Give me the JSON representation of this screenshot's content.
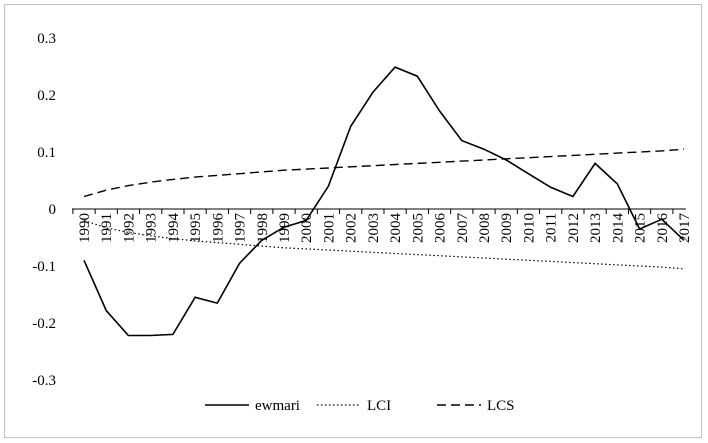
{
  "chart_data": {
    "type": "line",
    "title": "",
    "xlabel": "",
    "ylabel": "",
    "ylim": [
      -0.3,
      0.3
    ],
    "yticks": [
      "0.3",
      "0.2",
      "0.1",
      "0",
      "-0.1",
      "-0.2",
      "-0.3"
    ],
    "ytick_values": [
      0.3,
      0.2,
      0.1,
      0,
      -0.1,
      -0.2,
      -0.3
    ],
    "x": [
      "1990",
      "1991",
      "1992",
      "1993",
      "1994",
      "1995",
      "1996",
      "1997",
      "1998",
      "1999",
      "2000",
      "2001",
      "2002",
      "2003",
      "2004",
      "2005",
      "2006",
      "2007",
      "2008",
      "2009",
      "2010",
      "2011",
      "2012",
      "2013",
      "2014",
      "2015",
      "2016",
      "2017"
    ],
    "series": [
      {
        "name": "ewmari",
        "style": "solid",
        "values": [
          -0.09,
          -0.178,
          -0.222,
          -0.222,
          -0.22,
          -0.155,
          -0.165,
          -0.095,
          -0.055,
          -0.032,
          -0.02,
          0.04,
          0.145,
          0.205,
          0.249,
          0.233,
          0.172,
          0.12,
          0.105,
          0.086,
          0.062,
          0.038,
          0.022,
          0.08,
          0.044,
          -0.035,
          -0.018,
          -0.055
        ]
      },
      {
        "name": "LCI",
        "style": "dotted",
        "values": [
          -0.02,
          -0.033,
          -0.041,
          -0.047,
          -0.052,
          -0.056,
          -0.059,
          -0.062,
          -0.065,
          -0.068,
          -0.07,
          -0.072,
          -0.074,
          -0.076,
          -0.078,
          -0.08,
          -0.082,
          -0.084,
          -0.086,
          -0.088,
          -0.09,
          -0.092,
          -0.094,
          -0.096,
          -0.098,
          -0.1,
          -0.102,
          -0.105
        ]
      },
      {
        "name": "LCS",
        "style": "dashed",
        "values": [
          0.022,
          0.033,
          0.041,
          0.047,
          0.052,
          0.056,
          0.059,
          0.062,
          0.065,
          0.068,
          0.07,
          0.072,
          0.074,
          0.076,
          0.078,
          0.08,
          0.082,
          0.084,
          0.086,
          0.088,
          0.09,
          0.092,
          0.094,
          0.096,
          0.098,
          0.1,
          0.102,
          0.105
        ]
      }
    ],
    "legend": {
      "placement": "bottom-center",
      "entries": [
        "ewmari",
        "LCI",
        "LCS"
      ]
    }
  }
}
